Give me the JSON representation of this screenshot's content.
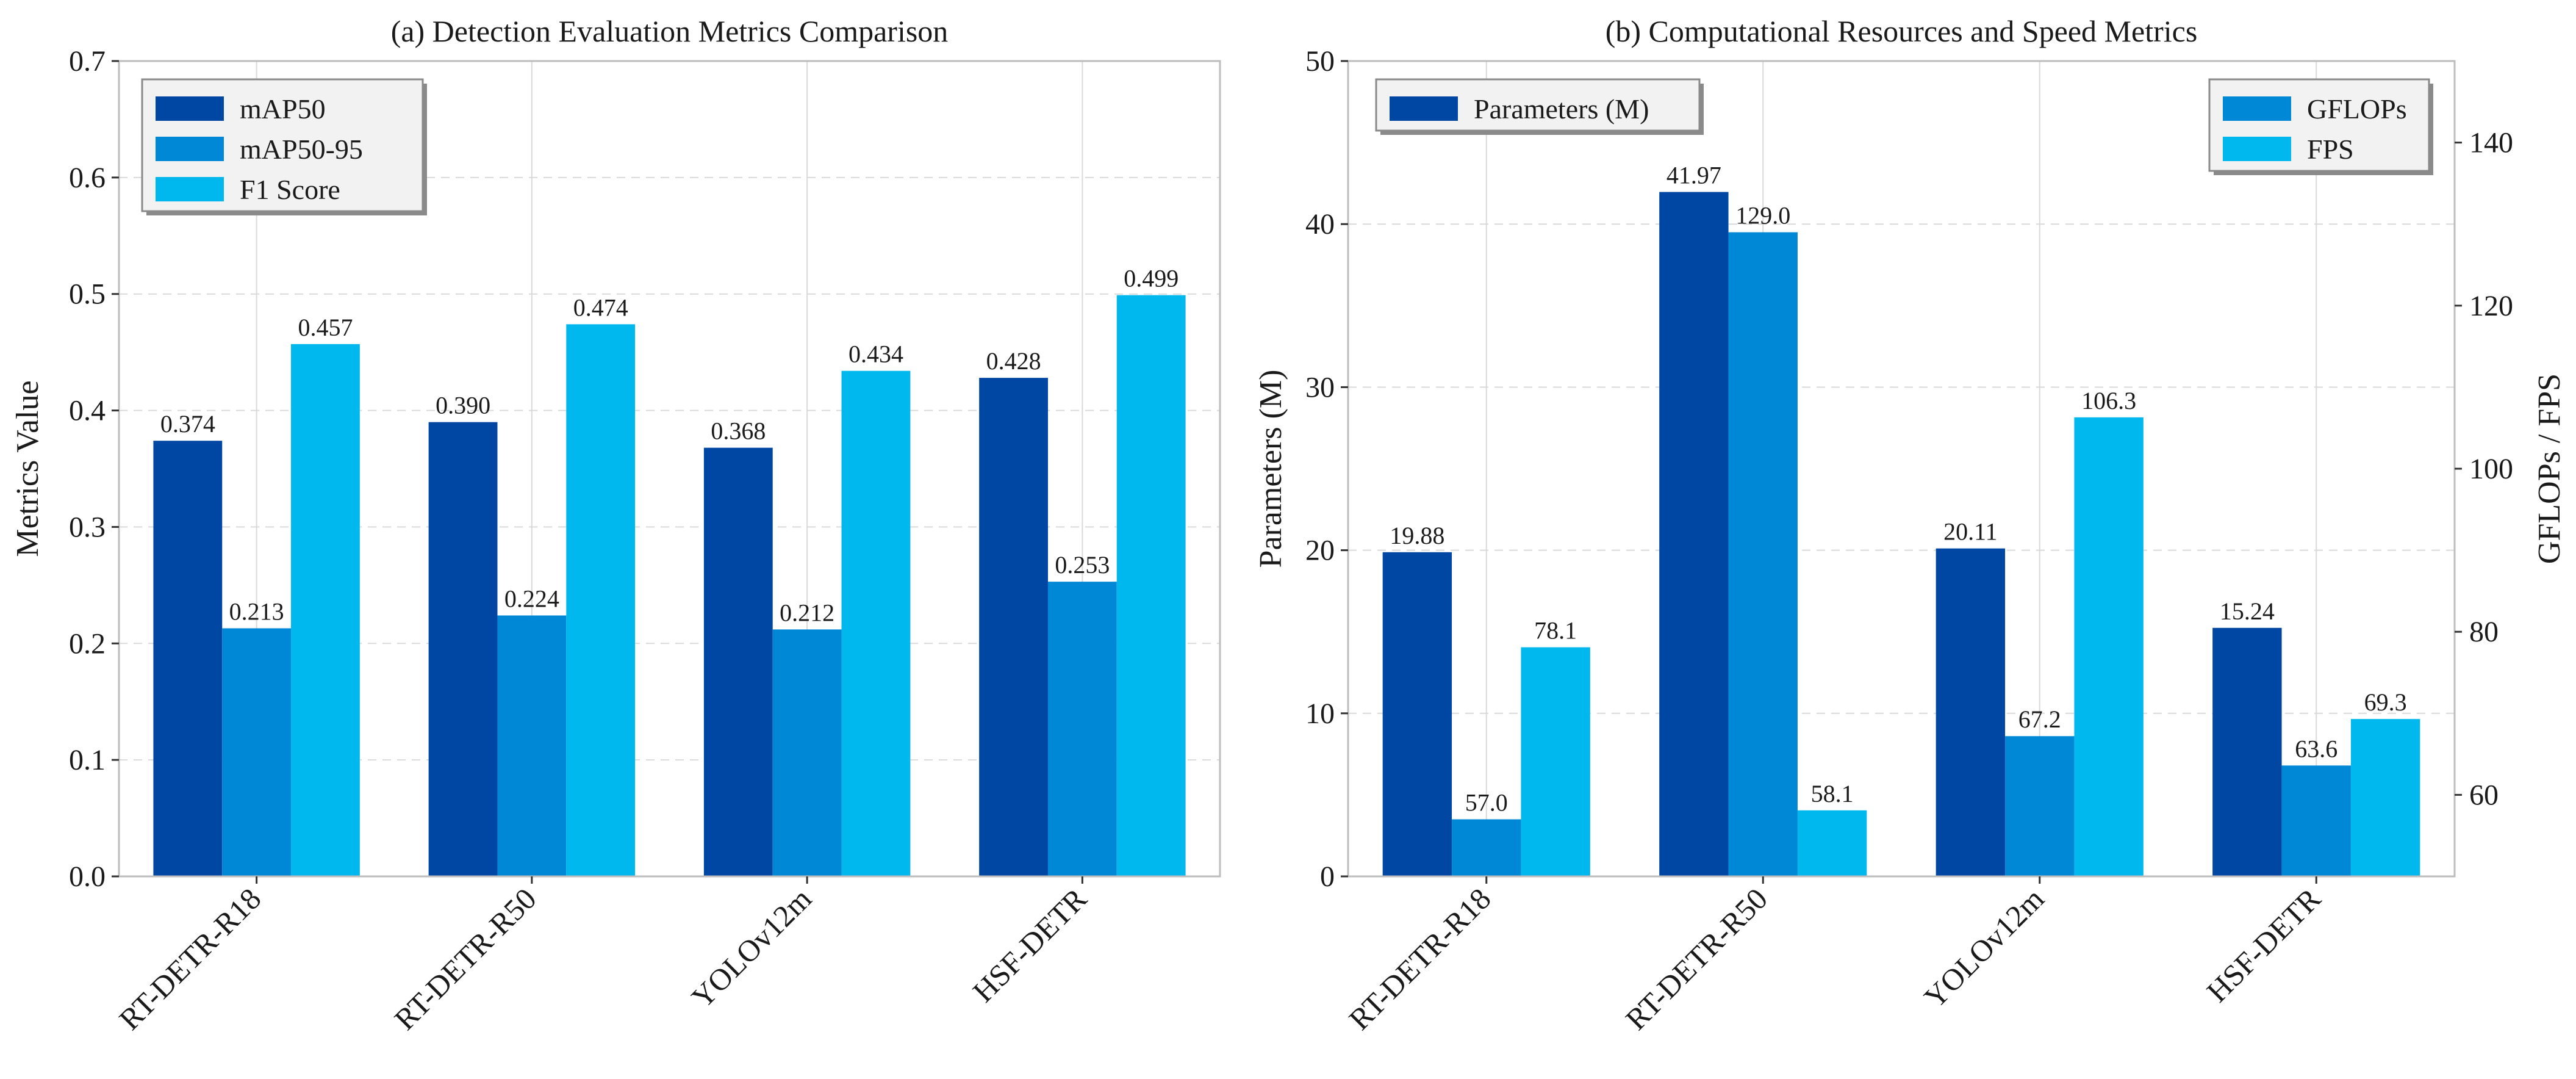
{
  "chart_data": [
    {
      "type": "bar",
      "title": "(a) Detection Evaluation Metrics Comparison",
      "xlabel": "",
      "ylabel": "Metrics Value",
      "categories": [
        "RT-DETR-R18",
        "RT-DETR-R50",
        "YOLOv12m",
        "HSF-DETR"
      ],
      "ylim": [
        0,
        0.7
      ],
      "yticks": [
        "0.0",
        "0.1",
        "0.2",
        "0.3",
        "0.4",
        "0.5",
        "0.6",
        "0.7"
      ],
      "grid": true,
      "legend_position": "top-left",
      "series": [
        {
          "name": "mAP50",
          "axis": "left",
          "values": [
            0.374,
            0.39,
            0.368,
            0.428
          ],
          "labels": [
            "0.374",
            "0.390",
            "0.368",
            "0.428"
          ],
          "color": "#0047A4"
        },
        {
          "name": "mAP50-95",
          "axis": "left",
          "values": [
            0.213,
            0.224,
            0.212,
            0.253
          ],
          "labels": [
            "0.213",
            "0.224",
            "0.212",
            "0.253"
          ],
          "color": "#0088D6"
        },
        {
          "name": "F1 Score",
          "axis": "left",
          "values": [
            0.457,
            0.474,
            0.434,
            0.499
          ],
          "labels": [
            "0.457",
            "0.474",
            "0.434",
            "0.499"
          ],
          "color": "#00B8EE"
        }
      ]
    },
    {
      "type": "bar",
      "title": "(b) Computational Resources and Speed Metrics",
      "xlabel": "",
      "ylabel": "Parameters (M)",
      "ylabel_right": "GFLOPs / FPS",
      "categories": [
        "RT-DETR-R18",
        "RT-DETR-R50",
        "YOLOv12m",
        "HSF-DETR"
      ],
      "ylim": [
        0,
        50
      ],
      "yticks": [
        "0",
        "10",
        "20",
        "30",
        "40",
        "50"
      ],
      "ylim_right": [
        50,
        150
      ],
      "yticks_right": [
        "60",
        "80",
        "100",
        "120",
        "140"
      ],
      "grid": true,
      "legend_position": "top-left",
      "legend_right_position": "top-right",
      "series": [
        {
          "name": "Parameters (M)",
          "axis": "left",
          "values": [
            19.88,
            41.97,
            20.11,
            15.24
          ],
          "labels": [
            "19.88",
            "41.97",
            "20.11",
            "15.24"
          ],
          "color": "#0047A4"
        },
        {
          "name": "GFLOPs",
          "axis": "right",
          "values": [
            57.0,
            129.0,
            67.2,
            63.6
          ],
          "labels": [
            "57.0",
            "129.0",
            "67.2",
            "63.6"
          ],
          "color": "#0088D6"
        },
        {
          "name": "FPS",
          "axis": "right",
          "values": [
            78.1,
            58.1,
            106.3,
            69.3
          ],
          "labels": [
            "78.1",
            "58.1",
            "106.3",
            "69.3"
          ],
          "color": "#00B8EE"
        }
      ]
    }
  ]
}
